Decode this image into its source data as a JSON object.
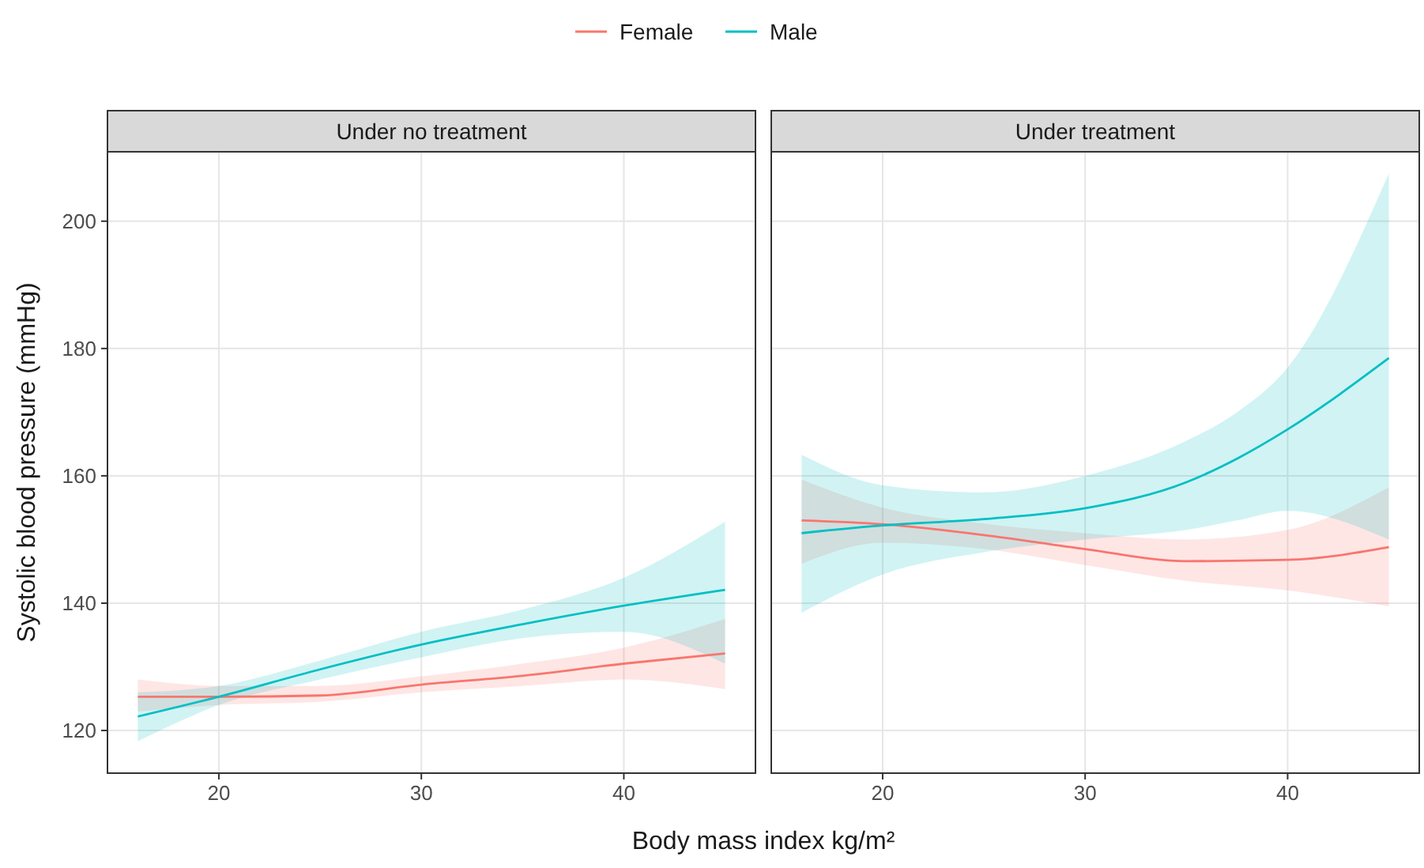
{
  "chart_data": [
    {
      "type": "line",
      "title": "Under no treatment",
      "ylabel": "Systolic blood pressure (mmHg)",
      "xlabel": "Body mass index kg/m²",
      "legend": "top",
      "grid": true,
      "xlim": [
        14.5,
        46.5
      ],
      "xticks": [
        20,
        30,
        40
      ],
      "ylim": [
        113.3,
        210.9
      ],
      "yticks": [
        120,
        140,
        160,
        180,
        200
      ],
      "series": [
        {
          "name": "Female",
          "color": "#f8766d",
          "x": [
            16,
            20,
            25,
            30,
            35,
            40,
            45
          ],
          "values": [
            125.3,
            125.3,
            125.5,
            127.2,
            128.6,
            130.5,
            132.1
          ],
          "lower": [
            123,
            124,
            124.5,
            126,
            127,
            128,
            126.5
          ],
          "upper": [
            128,
            127,
            127,
            128.5,
            130.5,
            133,
            137.5
          ]
        },
        {
          "name": "Male",
          "color": "#00bfc4",
          "x": [
            16,
            20,
            25,
            30,
            35,
            40,
            45
          ],
          "values": [
            122.2,
            125.3,
            129.6,
            133.5,
            136.7,
            139.6,
            142.1
          ],
          "lower": [
            118.3,
            124,
            128,
            131.5,
            134.5,
            135.5,
            130.5
          ],
          "upper": [
            126,
            127,
            131,
            135.5,
            139,
            144,
            152.8
          ]
        }
      ]
    },
    {
      "type": "line",
      "title": "Under treatment",
      "grid": true,
      "tick_labels": "x",
      "xlim": [
        14.5,
        46.5
      ],
      "xticks": [
        20,
        30,
        40
      ],
      "ylim": [
        113.3,
        210.9
      ],
      "yticks": [
        120,
        140,
        160,
        180,
        200
      ],
      "series": [
        {
          "color": "#f8766d",
          "x": [
            16,
            20,
            25,
            30,
            35,
            40,
            45
          ],
          "values": [
            153,
            152.4,
            150.7,
            148.5,
            146.6,
            146.8,
            148.8
          ],
          "lower": [
            146.2,
            149.5,
            148.5,
            146,
            143.5,
            142,
            139.5
          ],
          "upper": [
            159.4,
            155,
            152.5,
            151,
            150,
            151.5,
            158.2
          ]
        },
        {
          "color": "#00bfc4",
          "x": [
            16,
            20,
            25,
            30,
            35,
            37.5,
            40,
            45
          ],
          "values": [
            151,
            152.2,
            153.2,
            154.9,
            159,
            162.7,
            167.3,
            178.5
          ],
          "lower": [
            138.5,
            144.5,
            148,
            150,
            151.5,
            153,
            154.5,
            150
          ],
          "upper": [
            163.3,
            158.5,
            157.4,
            160,
            165.5,
            170,
            177,
            207.5
          ]
        }
      ]
    }
  ]
}
